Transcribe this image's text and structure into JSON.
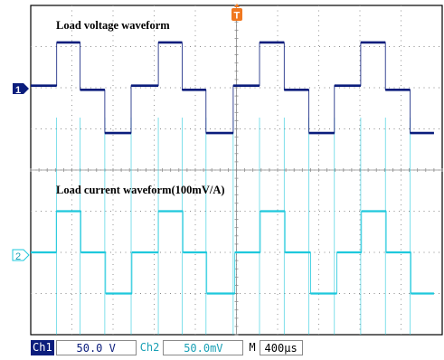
{
  "labels": {
    "voltage": "Load voltage waveform",
    "current": "Load current waveform(100mV/A)"
  },
  "markers": {
    "ch1": "1",
    "ch2": "2",
    "trigger": "T"
  },
  "status": {
    "ch1_tag": "Ch1",
    "ch1_scale": "50.0 V",
    "ch2_tag": "Ch2",
    "ch2_scale": "50.0mV",
    "mode": "M",
    "timebase": "400µs"
  },
  "colors": {
    "ch1": "#0b1d7c",
    "ch2": "#1ec8dc",
    "trigger": "#f07820",
    "grid": "#8a8a8a"
  },
  "chart_data": {
    "type": "line",
    "grid": true,
    "x_units": "divisions",
    "y_units": "divisions",
    "series": [
      {
        "name": "Load voltage waveform",
        "offset_div": 0,
        "points": [
          [
            0,
            0.05
          ],
          [
            0.63,
            0.05
          ],
          [
            0.63,
            1.1
          ],
          [
            1.2,
            1.1
          ],
          [
            1.2,
            -0.05
          ],
          [
            1.8,
            -0.05
          ],
          [
            1.8,
            -1.1
          ],
          [
            2.44,
            -1.1
          ],
          [
            2.44,
            0.05
          ],
          [
            3.1,
            0.05
          ],
          [
            3.1,
            1.1
          ],
          [
            3.68,
            1.1
          ],
          [
            3.68,
            -0.05
          ],
          [
            4.26,
            -0.05
          ],
          [
            4.26,
            -1.1
          ],
          [
            4.92,
            -1.1
          ],
          [
            4.92,
            0.05
          ],
          [
            5.56,
            0.05
          ],
          [
            5.56,
            1.1
          ],
          [
            6.16,
            1.1
          ],
          [
            6.16,
            -0.05
          ],
          [
            6.76,
            -0.05
          ],
          [
            6.76,
            -1.1
          ],
          [
            7.38,
            -1.1
          ],
          [
            7.38,
            0.05
          ],
          [
            8.02,
            0.05
          ],
          [
            8.02,
            1.1
          ],
          [
            8.62,
            1.1
          ],
          [
            8.62,
            -0.05
          ],
          [
            9.22,
            -0.05
          ],
          [
            9.22,
            -1.1
          ],
          [
            9.8,
            -1.1
          ]
        ]
      },
      {
        "name": "Load current waveform(100mV/A)",
        "offset_div": -4,
        "points": [
          [
            0,
            0
          ],
          [
            0.62,
            0
          ],
          [
            0.62,
            1.0
          ],
          [
            1.22,
            1.0
          ],
          [
            1.22,
            0
          ],
          [
            1.82,
            0
          ],
          [
            1.82,
            -1.0
          ],
          [
            2.46,
            -1.0
          ],
          [
            2.46,
            0
          ],
          [
            3.1,
            0
          ],
          [
            3.1,
            1.0
          ],
          [
            3.7,
            1.0
          ],
          [
            3.7,
            0
          ],
          [
            4.28,
            0
          ],
          [
            4.28,
            -1.0
          ],
          [
            4.96,
            -1.0
          ],
          [
            4.96,
            0
          ],
          [
            5.58,
            0
          ],
          [
            5.58,
            1.0
          ],
          [
            6.18,
            1.0
          ],
          [
            6.18,
            0
          ],
          [
            6.8,
            0
          ],
          [
            6.8,
            -1.0
          ],
          [
            7.44,
            -1.0
          ],
          [
            7.44,
            0
          ],
          [
            8.04,
            0
          ],
          [
            8.04,
            1.0
          ],
          [
            8.64,
            1.0
          ],
          [
            8.64,
            0
          ],
          [
            9.24,
            0
          ],
          [
            9.24,
            -1.0
          ],
          [
            9.8,
            -1.0
          ]
        ]
      }
    ]
  }
}
